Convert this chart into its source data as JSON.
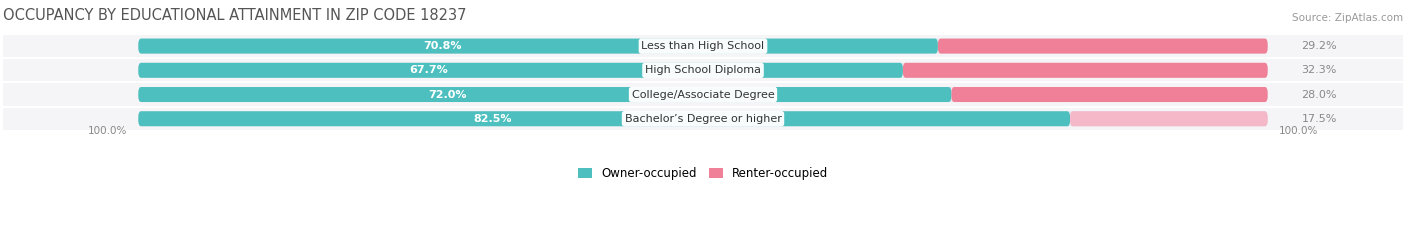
{
  "title": "OCCUPANCY BY EDUCATIONAL ATTAINMENT IN ZIP CODE 18237",
  "source": "Source: ZipAtlas.com",
  "categories": [
    "Less than High School",
    "High School Diploma",
    "College/Associate Degree",
    "Bachelor’s Degree or higher"
  ],
  "owner_values": [
    70.8,
    67.7,
    72.0,
    82.5
  ],
  "renter_values": [
    29.2,
    32.3,
    28.0,
    17.5
  ],
  "owner_color": "#4dbfbf",
  "renter_color": "#f08098",
  "renter_color_last": "#f5b8c8",
  "background_color": "#ffffff",
  "bar_bg_color": "#e8e8ec",
  "title_fontsize": 10.5,
  "bar_height": 0.62,
  "label_color_owner": "#ffffff",
  "label_color_renter": "#888888",
  "category_fontsize": 8.0,
  "value_fontsize": 8.0,
  "row_bg_color": "#f5f5f7"
}
